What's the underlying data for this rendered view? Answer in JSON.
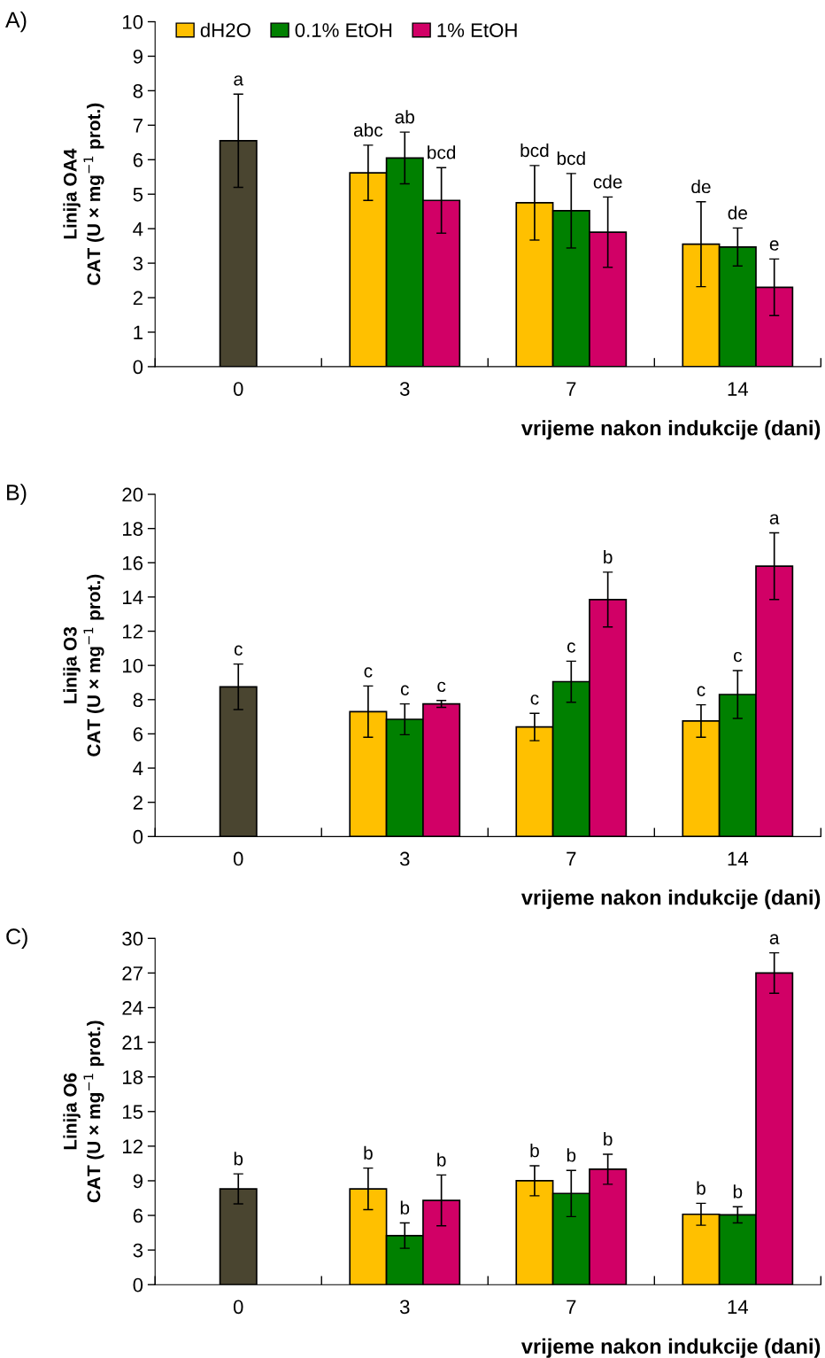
{
  "chart_data": [
    {
      "type": "bar",
      "title": "A)",
      "ylabel": "Linija OA4\nCAT (U × mg$^{−1}$ prot.)",
      "xlabel": "vrijeme nakon indukcije (dani)",
      "categories": [
        "0",
        "3",
        "7",
        "14"
      ],
      "ylim": [
        0,
        10
      ],
      "yticks": [
        0,
        1,
        2,
        3,
        4,
        5,
        6,
        7,
        8,
        9,
        10
      ],
      "legend": "top left",
      "grid": false,
      "series": [
        {
          "color": "#4a4530",
          "values": [
            6.55,
            null,
            null,
            null
          ],
          "errors": [
            1.35,
            null,
            null,
            null
          ],
          "value_labels": [
            "a",
            null,
            null,
            null
          ]
        },
        {
          "name": "dH2O",
          "color": "#ffc000",
          "values": [
            null,
            5.62,
            4.75,
            3.55
          ],
          "errors": [
            null,
            0.8,
            1.08,
            1.23
          ],
          "value_labels": [
            null,
            "abc",
            "bcd",
            "de"
          ]
        },
        {
          "name": "0.1% EtOH",
          "color": "#008000",
          "values": [
            null,
            6.05,
            4.52,
            3.47
          ],
          "errors": [
            null,
            0.75,
            1.08,
            0.55
          ],
          "value_labels": [
            null,
            "ab",
            "bcd",
            "de"
          ]
        },
        {
          "name": "1% EtOH",
          "color": "#d10066",
          "values": [
            null,
            4.82,
            3.9,
            2.3
          ],
          "errors": [
            null,
            0.95,
            1.02,
            0.82
          ],
          "value_labels": [
            null,
            "bcd",
            "cde",
            "e"
          ]
        }
      ]
    },
    {
      "type": "bar",
      "title": "B)",
      "ylabel": "Linija O3\nCAT (U × mg$^{−1}$ prot.)",
      "xlabel": "vrijeme nakon indukcije (dani)",
      "categories": [
        "0",
        "3",
        "7",
        "14"
      ],
      "ylim": [
        0,
        20
      ],
      "yticks": [
        0,
        2,
        4,
        6,
        8,
        10,
        12,
        14,
        16,
        18,
        20
      ],
      "grid": false,
      "series": [
        {
          "color": "#4a4530",
          "values": [
            8.75,
            null,
            null,
            null
          ],
          "errors": [
            1.33,
            null,
            null,
            null
          ],
          "value_labels": [
            "c",
            null,
            null,
            null
          ]
        },
        {
          "color": "#ffc000",
          "values": [
            null,
            7.3,
            6.4,
            6.75
          ],
          "errors": [
            null,
            1.5,
            0.8,
            0.95
          ],
          "value_labels": [
            null,
            "c",
            "c",
            "c"
          ]
        },
        {
          "color": "#008000",
          "values": [
            null,
            6.85,
            9.05,
            8.3
          ],
          "errors": [
            null,
            0.9,
            1.2,
            1.4
          ],
          "value_labels": [
            null,
            "c",
            "c",
            "c"
          ]
        },
        {
          "color": "#d10066",
          "values": [
            null,
            7.75,
            13.85,
            15.8
          ],
          "errors": [
            null,
            0.2,
            1.6,
            1.95
          ],
          "value_labels": [
            null,
            "c",
            "b",
            "a"
          ]
        }
      ]
    },
    {
      "type": "bar",
      "title": "C)",
      "ylabel": "Linija O6\nCAT (U × mg$^{−1}$ prot.)",
      "xlabel": "vrijeme nakon indukcije (dani)",
      "categories": [
        "0",
        "3",
        "7",
        "14"
      ],
      "ylim": [
        0,
        30
      ],
      "yticks": [
        0,
        3,
        6,
        9,
        12,
        15,
        18,
        21,
        24,
        27,
        30
      ],
      "grid": false,
      "series": [
        {
          "color": "#4a4530",
          "values": [
            8.3,
            null,
            null,
            null
          ],
          "errors": [
            1.3,
            null,
            null,
            null
          ],
          "value_labels": [
            "b",
            null,
            null,
            null
          ]
        },
        {
          "color": "#ffc000",
          "values": [
            null,
            8.3,
            9.0,
            6.1
          ],
          "errors": [
            null,
            1.8,
            1.3,
            0.95
          ],
          "value_labels": [
            null,
            "b",
            "b",
            "b"
          ]
        },
        {
          "color": "#008000",
          "values": [
            null,
            4.25,
            7.9,
            6.05
          ],
          "errors": [
            null,
            1.1,
            2.0,
            0.7
          ],
          "value_labels": [
            null,
            "b",
            "b",
            "b"
          ]
        },
        {
          "color": "#d10066",
          "values": [
            null,
            7.3,
            10.0,
            27.0
          ],
          "errors": [
            null,
            2.2,
            1.3,
            1.75
          ],
          "value_labels": [
            null,
            "b",
            "b",
            "a"
          ]
        }
      ]
    }
  ]
}
